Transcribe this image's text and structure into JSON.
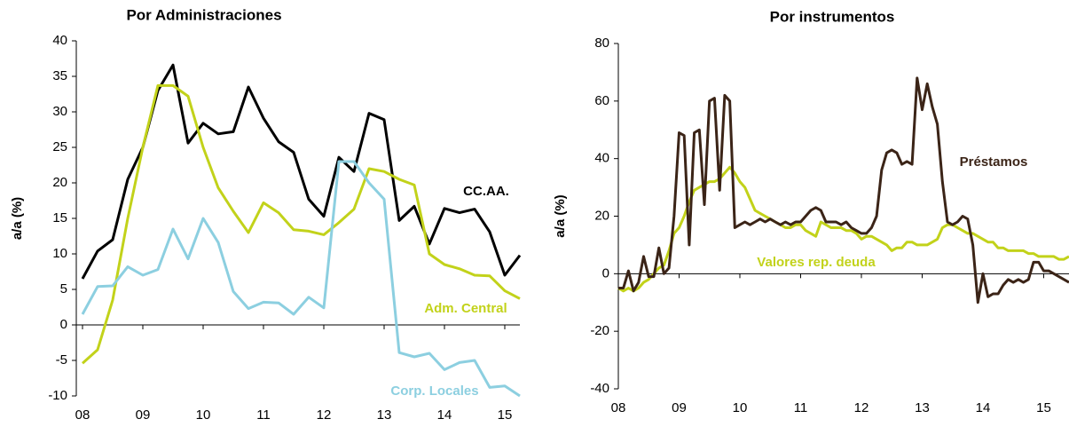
{
  "chart_data": [
    {
      "type": "line",
      "title": "Por Administraciones",
      "y_label": "a/a (%)",
      "categories": [
        "08",
        null,
        null,
        null,
        "09",
        null,
        null,
        null,
        "10",
        null,
        null,
        null,
        "11",
        null,
        null,
        null,
        "12",
        null,
        null,
        null,
        "13",
        null,
        null,
        null,
        "14",
        null,
        null,
        null,
        "15",
        null
      ],
      "ylim": [
        -10,
        40
      ],
      "yticks": [
        -10,
        -5,
        0,
        5,
        10,
        15,
        20,
        25,
        30,
        35,
        40
      ],
      "grid": false,
      "series": [
        {
          "name": "CC.AA.",
          "color": "#000000",
          "values": [
            6.5,
            10.4,
            12,
            20.5,
            25,
            33,
            36.6,
            25.6,
            28.4,
            26.9,
            27.2,
            33.5,
            29.1,
            25.8,
            24.3,
            17.7,
            15.3,
            23.6,
            21.6,
            29.8,
            28.9,
            14.7,
            16.7,
            11.4,
            16.4,
            15.8,
            16.3,
            13.1,
            7,
            9.8
          ]
        },
        {
          "name": "Adm. Central",
          "color": "#c2d21a",
          "values": [
            -5.4,
            -3.5,
            3.5,
            15,
            25,
            33.7,
            33.7,
            32.2,
            25,
            19.3,
            16,
            13,
            17.2,
            15.8,
            13.4,
            13.2,
            12.7,
            14.4,
            16.3,
            22,
            21.6,
            20.5,
            19.7,
            10,
            8.5,
            7.9,
            7,
            6.9,
            4.8,
            3.7
          ]
        },
        {
          "name": "Corp. Locales",
          "color": "#8ccfe0",
          "values": [
            1.5,
            5.4,
            5.5,
            8.2,
            7,
            7.8,
            13.5,
            9.3,
            15,
            11.6,
            4.7,
            2.3,
            3.2,
            3.1,
            1.5,
            3.9,
            2.4,
            23,
            23,
            20,
            17.7,
            -3.9,
            -4.5,
            -4,
            -6.3,
            -5.3,
            -5,
            -8.8,
            -8.6,
            -10
          ]
        }
      ]
    },
    {
      "type": "line",
      "title": "Por instrumentos",
      "y_label": "a/a (%)",
      "categories": [
        "08",
        null,
        null,
        null,
        null,
        null,
        null,
        null,
        null,
        null,
        null,
        null,
        "09",
        null,
        null,
        null,
        null,
        null,
        null,
        null,
        null,
        null,
        null,
        null,
        "10",
        null,
        null,
        null,
        null,
        null,
        null,
        null,
        null,
        null,
        null,
        null,
        "11",
        null,
        null,
        null,
        null,
        null,
        null,
        null,
        null,
        null,
        null,
        null,
        "12",
        null,
        null,
        null,
        null,
        null,
        null,
        null,
        null,
        null,
        null,
        null,
        "13",
        null,
        null,
        null,
        null,
        null,
        null,
        null,
        null,
        null,
        null,
        null,
        "14",
        null,
        null,
        null,
        null,
        null,
        null,
        null,
        null,
        null,
        null,
        null,
        "15",
        null,
        null,
        null,
        null,
        null
      ],
      "ylim": [
        -40,
        80
      ],
      "yticks": [
        -40,
        -20,
        0,
        20,
        40,
        60,
        80
      ],
      "grid": false,
      "series": [
        {
          "name": "Valores rep. deuda",
          "color": "#c2d21a",
          "values": [
            -5,
            -6,
            -5,
            -6,
            -5,
            -3,
            -2,
            0,
            2,
            3,
            8,
            14,
            16,
            20,
            25,
            29,
            30,
            31,
            32,
            32,
            33,
            35,
            37,
            35,
            32,
            30,
            26,
            22,
            21,
            20,
            19,
            18,
            17,
            16,
            16,
            17,
            17,
            15,
            14,
            13,
            18,
            17,
            16,
            16,
            16,
            15,
            15,
            14,
            12,
            13,
            13,
            12,
            11,
            10,
            8,
            9,
            9,
            11,
            11,
            10,
            10,
            10,
            11,
            12,
            16,
            17,
            17,
            16,
            15,
            14,
            14,
            13,
            12,
            11,
            11,
            9,
            9,
            8,
            8,
            8,
            8,
            7,
            7,
            6,
            6,
            6,
            6,
            5,
            5,
            6
          ]
        },
        {
          "name": "Préstamos",
          "color": "#3b2417",
          "values": [
            -5,
            -5,
            1,
            -6,
            -3,
            6,
            -1,
            -1,
            9,
            0,
            2,
            20,
            49,
            48,
            10,
            49,
            50,
            24,
            60,
            61,
            29,
            62,
            60,
            16,
            17,
            18,
            17,
            18,
            19,
            18,
            19,
            18,
            17,
            18,
            17,
            18,
            18,
            20,
            22,
            23,
            22,
            18,
            18,
            18,
            17,
            18,
            16,
            15,
            14,
            14,
            16,
            20,
            36,
            42,
            43,
            42,
            38,
            39,
            38,
            68,
            57,
            66,
            58,
            52,
            32,
            18,
            17,
            18,
            20,
            19,
            10,
            -10,
            0,
            -8,
            -7,
            -7,
            -4,
            -2,
            -3,
            -2,
            -3,
            -2,
            4,
            4,
            1,
            1,
            0,
            -1,
            -2,
            -3
          ]
        }
      ]
    }
  ]
}
